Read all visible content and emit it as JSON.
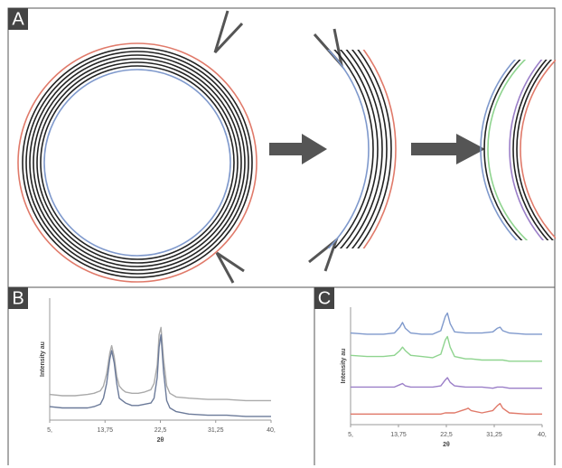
{
  "panel_labels": [
    "A",
    "B",
    "C"
  ],
  "chart_data": [
    {
      "type": "line",
      "x_label": "2θ",
      "y_label": "Intensity au",
      "x": [
        5,
        7,
        9,
        11,
        12,
        13,
        13.5,
        14,
        14.5,
        14.8,
        15.2,
        15.6,
        16,
        16.5,
        17,
        18,
        19,
        20,
        21,
        21.5,
        22,
        22.3,
        22.6,
        23,
        23.5,
        24,
        25,
        27,
        30,
        33,
        36,
        40
      ],
      "series": [
        {
          "color": "#aaaaaa",
          "values": [
            21,
            20,
            20,
            21,
            22,
            24,
            28,
            38,
            55,
            61,
            52,
            36,
            28,
            25,
            23,
            22,
            22,
            23,
            25,
            30,
            45,
            70,
            76,
            50,
            28,
            22,
            19,
            18,
            17,
            17,
            16,
            16
          ]
        },
        {
          "color": "#6b7a99",
          "values": [
            11,
            10,
            10,
            10,
            11,
            13,
            18,
            30,
            50,
            57,
            47,
            30,
            18,
            16,
            14,
            12,
            12,
            13,
            14,
            18,
            35,
            60,
            70,
            40,
            16,
            10,
            7,
            5,
            4,
            4,
            3,
            3
          ]
        }
      ],
      "xlim": [
        5,
        40
      ],
      "xticks": [
        {
          "value": 5,
          "label": "5,"
        },
        {
          "value": 13.75,
          "label": "13,75"
        },
        {
          "value": 22.5,
          "label": "22,5"
        },
        {
          "value": 31.25,
          "label": "31,25"
        },
        {
          "value": 40,
          "label": "40,"
        }
      ],
      "ylim": [
        0,
        100
      ]
    },
    {
      "type": "line",
      "x_label": "2θ",
      "y_label": "Intensity au",
      "x": [
        5,
        8,
        11,
        13,
        14,
        14.5,
        15,
        16,
        18,
        20,
        21.5,
        22.3,
        22.7,
        23.2,
        24,
        26,
        26.5,
        27,
        29,
        31,
        31.8,
        32.3,
        32.8,
        34,
        37,
        40
      ],
      "series": [
        {
          "color": "#7f99cc",
          "values": [
            78,
            77,
            77,
            78,
            83,
            87,
            82,
            78,
            77,
            77,
            80,
            92,
            95,
            86,
            79,
            78,
            78,
            78,
            78,
            79,
            82,
            83,
            80,
            78,
            77,
            77
          ]
        },
        {
          "color": "#8fd48f",
          "values": [
            59,
            58,
            58,
            59,
            63,
            66,
            63,
            59,
            58,
            57,
            60,
            72,
            75,
            66,
            58,
            56,
            56,
            56,
            55,
            55,
            55,
            55,
            55,
            54,
            54,
            54
          ]
        },
        {
          "color": "#9b7fc8",
          "values": [
            32,
            32,
            32,
            32,
            34,
            35,
            33,
            32,
            32,
            32,
            33,
            38,
            40,
            36,
            33,
            32,
            32,
            32,
            32,
            31,
            32,
            32,
            32,
            31,
            31,
            31
          ]
        },
        {
          "color": "#e07a6a",
          "values": [
            9,
            9,
            9,
            9,
            9,
            9,
            9,
            9,
            9,
            9,
            9,
            10,
            10,
            10,
            10,
            13,
            14,
            12,
            10,
            12,
            16,
            18,
            14,
            10,
            9,
            9
          ]
        }
      ],
      "xlim": [
        5,
        40
      ],
      "xticks": [
        {
          "value": 5,
          "label": "5,"
        },
        {
          "value": 13.75,
          "label": "13,75"
        },
        {
          "value": 22.5,
          "label": "22,5"
        },
        {
          "value": 31.25,
          "label": "31,25"
        },
        {
          "value": 40,
          "label": "40,"
        }
      ],
      "ylim": [
        0,
        100
      ]
    }
  ]
}
